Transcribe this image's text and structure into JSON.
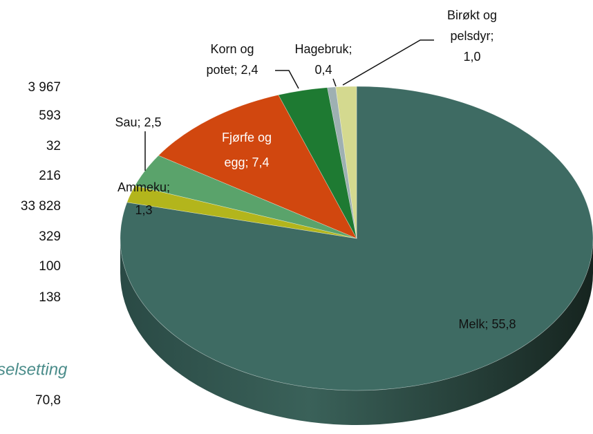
{
  "chart_data": {
    "type": "pie",
    "values": [
      55.8,
      1.3,
      2.5,
      7.4,
      2.4,
      0.4,
      1.0
    ],
    "value_labels": [
      [
        "Melk;  55,8"
      ],
      [
        "Ammeku;",
        "1,3"
      ],
      [
        "Sau;  2,5"
      ],
      [
        "Fjørfe og",
        "egg;  7,4"
      ],
      [
        "Korn og",
        "potet;  2,4"
      ],
      [
        "Hagebruk;",
        "0,4"
      ],
      [
        "Birøkt og",
        "pelsdyr;",
        "1,0"
      ]
    ],
    "colors": [
      "#3e6b63",
      "#b3b51c",
      "#5aa36b",
      "#d1470f",
      "#1e7a32",
      "#9eb0b2",
      "#d4d98f"
    ],
    "start_angle": -90,
    "direction": "clockwise"
  },
  "table": {
    "rows": [
      "3 967",
      "593",
      "32",
      "216",
      "33 828",
      "329",
      "100",
      "138"
    ],
    "heading": "selsetting",
    "total": "70,8"
  }
}
